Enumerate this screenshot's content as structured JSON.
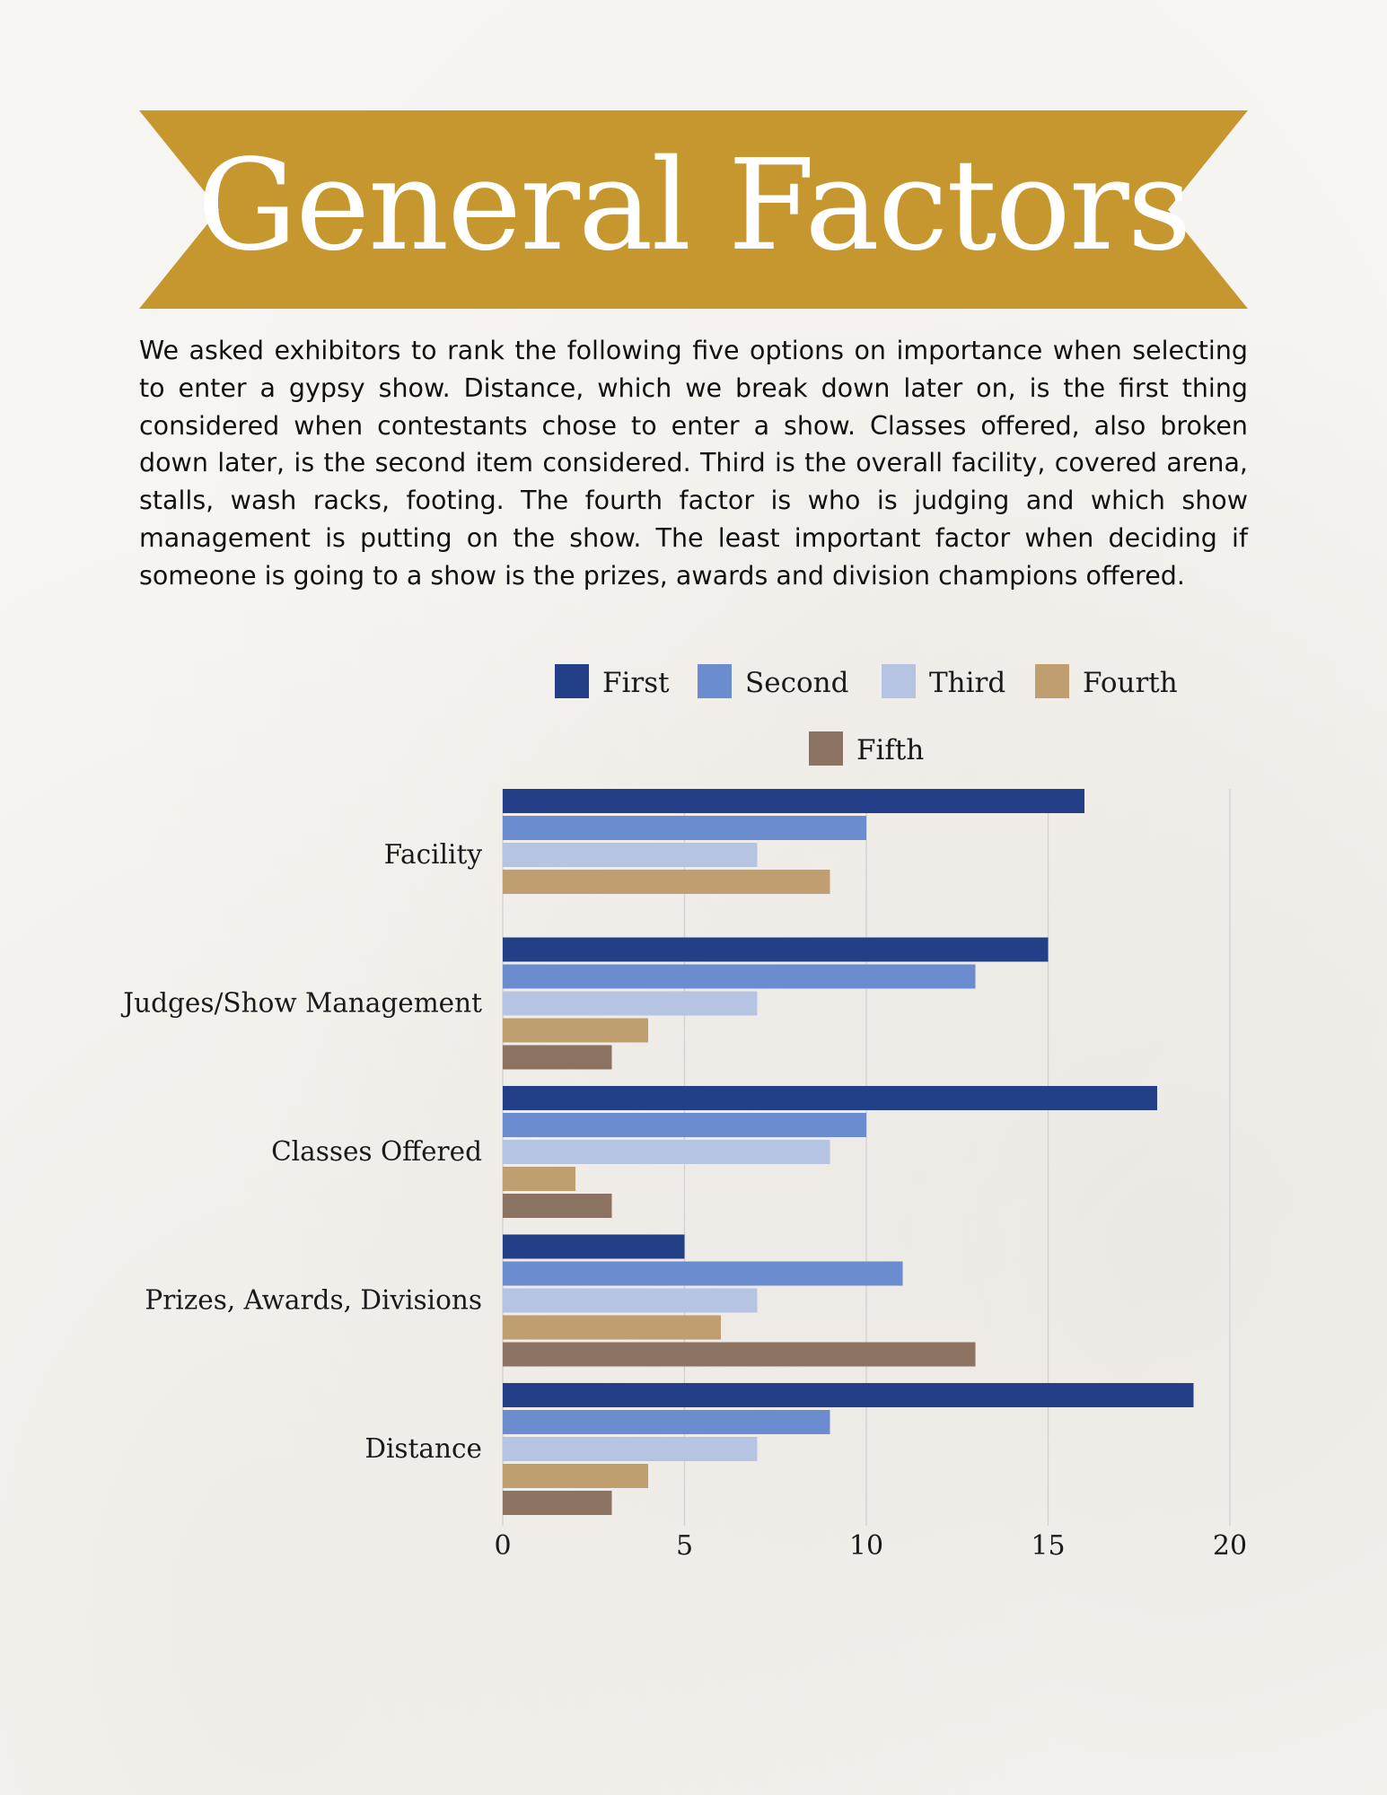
{
  "page": {
    "title": "General Factors",
    "intro": "We asked exhibitors to rank the following five options on importance when selecting to enter a gypsy show.  Distance, which we break down later on, is the first thing considered when contestants chose to enter a show.  Classes offered, also broken down later, is the second item considered.  Third is the overall facility, covered arena, stalls, wash racks, footing.  The fourth factor is who is judging and which show management is putting on the show.  The least important factor when deciding if someone is going to a show is the prizes, awards and division champions offered."
  },
  "colors": {
    "banner": "#c6972e",
    "first": "#233f87",
    "second": "#6b8ccf",
    "third": "#b6c4e4",
    "fourth": "#bf9f6f",
    "fifth": "#8c7260",
    "grid": "#cfcfcf"
  },
  "chart_data": {
    "type": "bar",
    "orientation": "horizontal",
    "categories": [
      "Facility",
      "Judges/Show Management",
      "Classes Offered",
      "Prizes, Awards, Divisions",
      "Distance"
    ],
    "series": [
      {
        "name": "First",
        "color": "#233f87",
        "values": [
          16,
          15,
          18,
          5,
          19
        ]
      },
      {
        "name": "Second",
        "color": "#6b8ccf",
        "values": [
          10,
          13,
          10,
          11,
          9
        ]
      },
      {
        "name": "Third",
        "color": "#b6c4e4",
        "values": [
          7,
          7,
          9,
          7,
          7
        ]
      },
      {
        "name": "Fourth",
        "color": "#bf9f6f",
        "values": [
          9,
          4,
          2,
          6,
          4
        ]
      },
      {
        "name": "Fifth",
        "color": "#8c7260",
        "values": [
          0,
          3,
          3,
          13,
          3
        ]
      }
    ],
    "xlim": [
      0,
      20
    ],
    "xticks": [
      0,
      5,
      10,
      15,
      20
    ],
    "grid": true,
    "legend": "top"
  }
}
